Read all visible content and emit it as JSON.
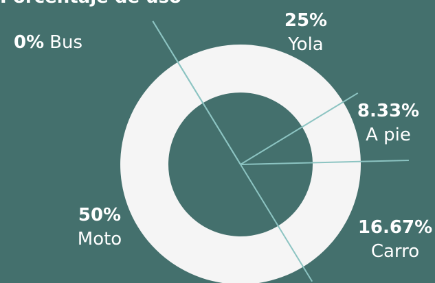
{
  "chart_data": {
    "type": "donut",
    "title": "Porcentaje de uso",
    "categories": [
      "Bus",
      "Yola",
      "A pie",
      "Carro",
      "Moto"
    ],
    "values": [
      0,
      25,
      8.33,
      16.67,
      50
    ],
    "value_labels": [
      "0%",
      "25%",
      "8.33%",
      "16.67%",
      "50%"
    ],
    "color": "#f5f5f5"
  }
}
